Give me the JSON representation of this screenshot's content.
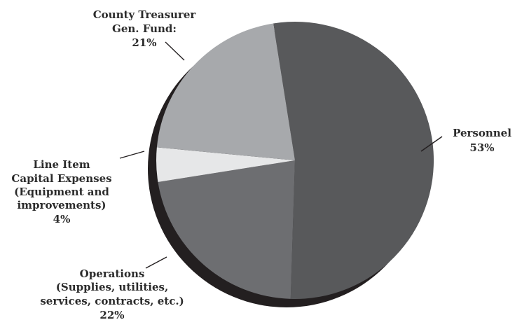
{
  "chart_data": {
    "type": "pie",
    "title": "",
    "slices": [
      {
        "key": "personnel",
        "label_lines": [
          "Personnel"
        ],
        "value_label": "53%",
        "value": 53,
        "color": "#58595b"
      },
      {
        "key": "operations",
        "label_lines": [
          "Operations",
          "(Supplies, utilities,",
          "services, contracts, etc.)"
        ],
        "value_label": "22%",
        "value": 22,
        "color": "#6d6e71"
      },
      {
        "key": "capital",
        "label_lines": [
          "Line Item",
          "Capital Expenses",
          "(Equipment and",
          "improvements)"
        ],
        "value_label": "4%",
        "value": 4,
        "color": "#e6e7e8"
      },
      {
        "key": "treasurer",
        "label_lines": [
          "County Treasurer",
          "Gen. Fund:"
        ],
        "value_label": "21%",
        "value": 21,
        "color": "#a7a9ac"
      }
    ],
    "shadow_color": "#231f20",
    "legend": "none"
  }
}
